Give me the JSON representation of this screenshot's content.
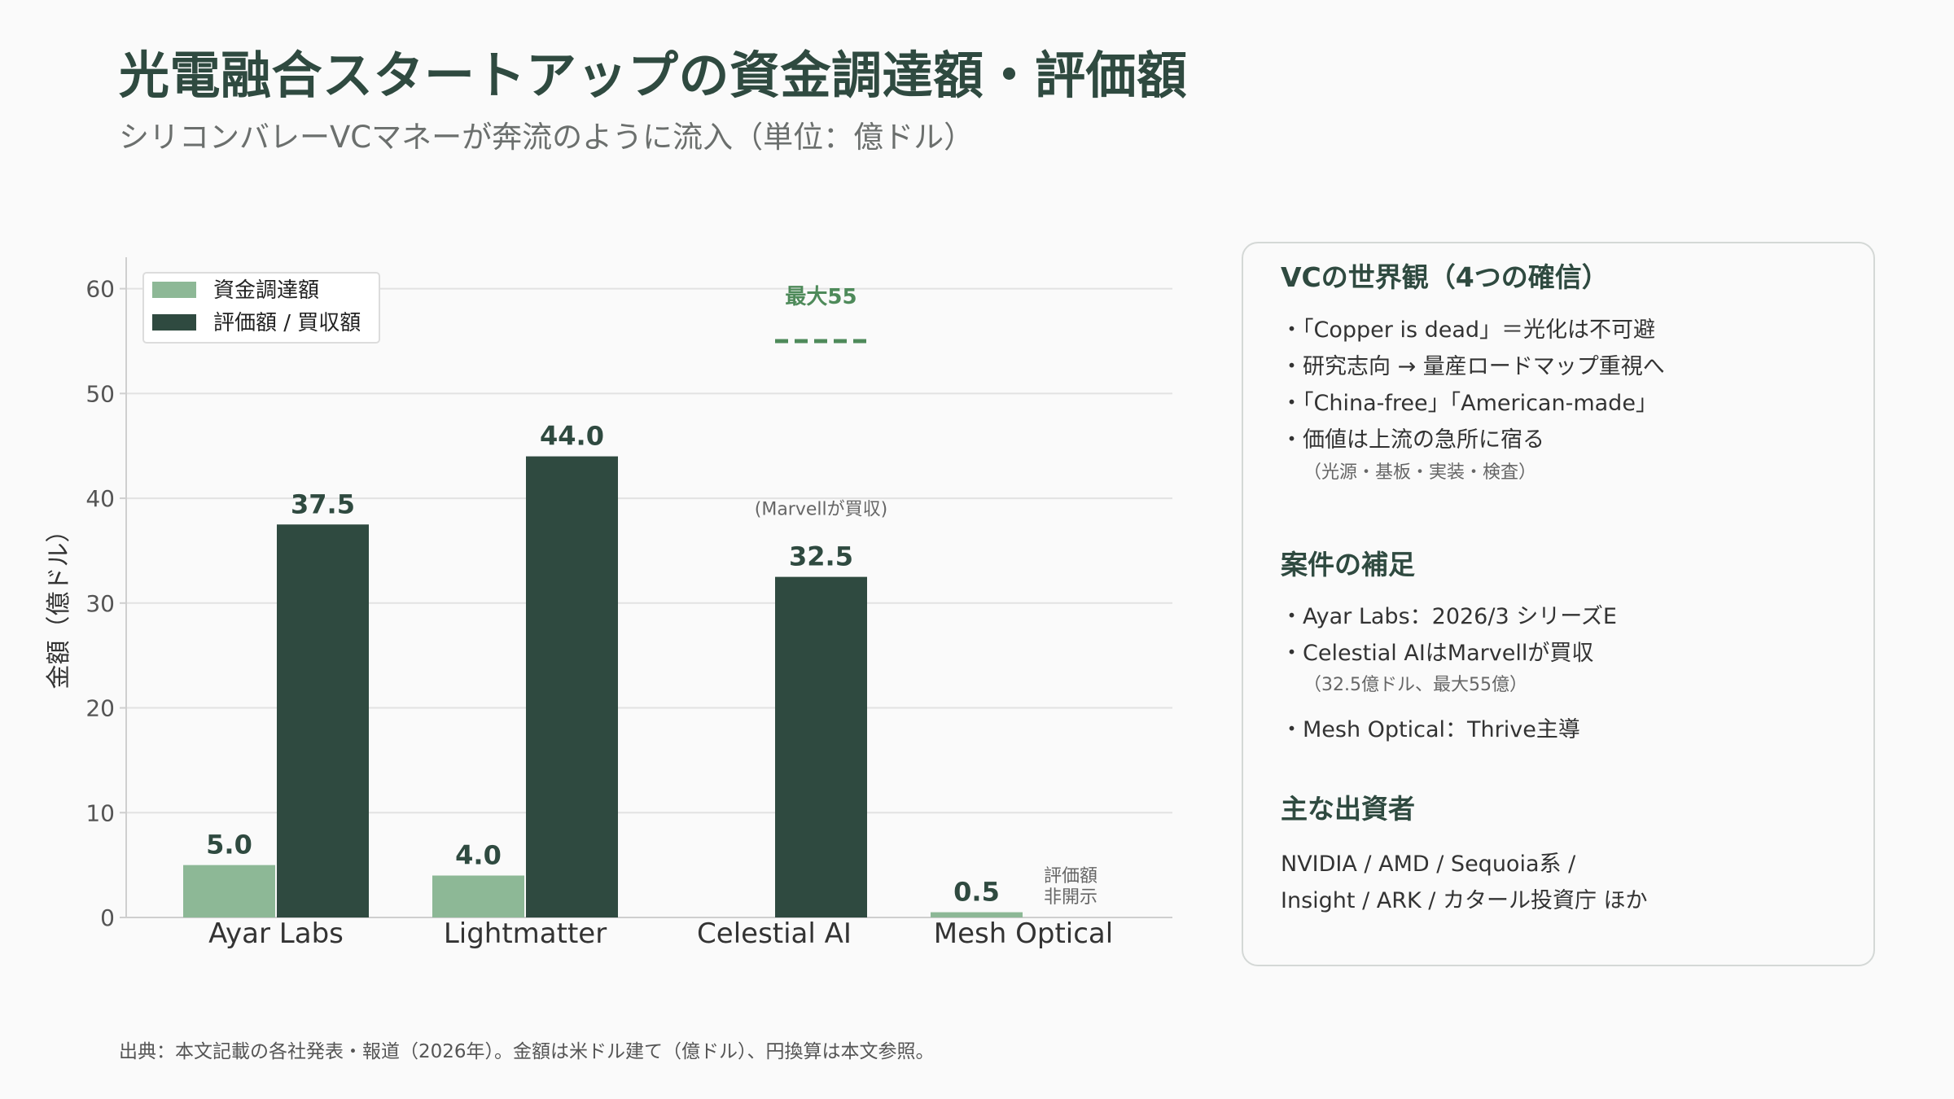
{
  "title": "光電融合スタートアップの資金調達額・評価額",
  "subtitle": "シリコンバレーVCマネーが奔流のように流入（単位：億ドル）",
  "colors": {
    "funding": "#8db896",
    "valuation": "#2f4a40",
    "dashed": "#4e8a5a",
    "grid": "#e2e2e2",
    "axis": "#cfcfcf"
  },
  "chart_data": {
    "type": "bar",
    "categories": [
      "Ayar Labs",
      "Lightmatter",
      "Celestial AI",
      "Mesh Optical"
    ],
    "series": [
      {
        "name": "資金調達額",
        "values": [
          5.0,
          4.0,
          null,
          0.5
        ]
      },
      {
        "name": "評価額 / 買収額",
        "values": [
          37.5,
          44.0,
          32.5,
          null
        ]
      }
    ],
    "ylabel": "金額（億ドル）",
    "ylim": [
      0,
      63
    ],
    "yticks": [
      0,
      10,
      20,
      30,
      40,
      50,
      60
    ],
    "grid": true,
    "legend_position": "top-left",
    "annotations": {
      "max_label": "最大55",
      "max_value": 55,
      "max_category": "Celestial AI",
      "acquired_note": "(Marvellが買収)",
      "undisclosed_line1": "評価額",
      "undisclosed_line2": "非開示"
    }
  },
  "panel": {
    "section1": {
      "heading": "VCの世界観（4つの確信）",
      "items": [
        "・「Copper is dead」＝光化は不可避",
        "・研究志向 → 量産ロードマップ重視へ",
        "・「China-free」「American-made」",
        "・価値は上流の急所に宿る"
      ],
      "note": "（光源・基板・実装・検査）"
    },
    "section2": {
      "heading": "案件の補足",
      "items": [
        "・Ayar Labs：2026/3 シリーズE",
        "・Celestial AIはMarvellが買収",
        "・Mesh Optical：Thrive主導"
      ],
      "note": "（32.5億ドル、最大55億）"
    },
    "section3": {
      "heading": "主な出資者",
      "line1": "NVIDIA / AMD / Sequoia系 /",
      "line2": "Insight / ARK / カタール投資庁 ほか"
    }
  },
  "source": "出典：本文記載の各社発表・報道（2026年）。金額は米ドル建て（億ドル）、円換算は本文参照。"
}
